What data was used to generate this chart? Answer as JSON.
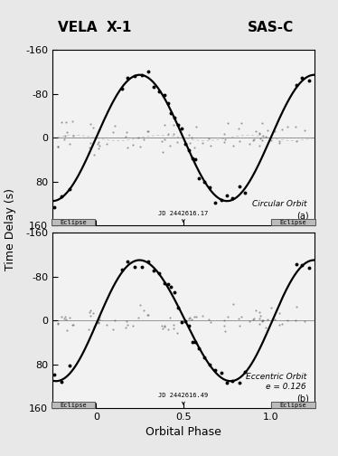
{
  "title_left": "VELA  X-1",
  "title_right": "SAS-C",
  "xlabel": "Orbital Phase",
  "ylabel": "Time Delay (s)",
  "background_color": "#e8e8e8",
  "panel_bg": "#f2f2f2",
  "ylim": [
    -160,
    160
  ],
  "xlim": [
    -0.25,
    1.25
  ],
  "yticks": [
    -160,
    -80,
    0,
    80,
    160
  ],
  "xticks": [
    0,
    0.5,
    1.0
  ],
  "panel_a_label": "(a)",
  "panel_a_text": "Circular Orbit",
  "panel_b_label": "(b)",
  "panel_b_text": "Eccentric Orbit\ne = 0.126",
  "jd_a": "JD 2442616.17",
  "jd_b": "JD 2442616.49",
  "eclipse_color": "#bbbbbb",
  "curve_color": "#000000",
  "amplitude_a": 115,
  "amplitude_b": 110
}
